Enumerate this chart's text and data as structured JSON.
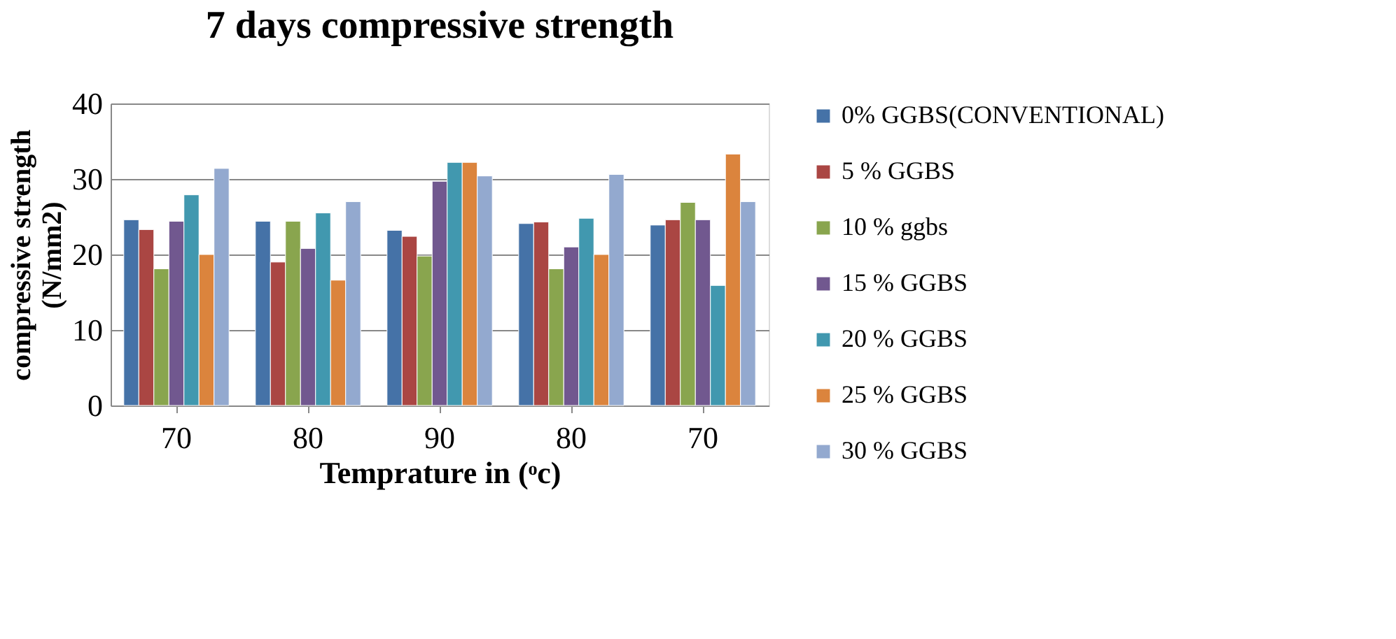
{
  "chart_data": {
    "type": "bar",
    "title": "7 days compressive strength",
    "xlabel": "Temprature in (ᵒc)",
    "ylabel": "compressive strength (N/mm2)",
    "categories": [
      "70",
      "80",
      "90",
      "80",
      "70"
    ],
    "series": [
      {
        "name": "0% GGBS(CONVENTIONAL)",
        "color": "#4572a7",
        "values": [
          24.6,
          24.4,
          23.2,
          24.1,
          23.9
        ]
      },
      {
        "name": "5 % GGBS",
        "color": "#aa4643",
        "values": [
          23.3,
          19.0,
          22.4,
          24.3,
          24.6
        ]
      },
      {
        "name": "10 % ggbs",
        "color": "#89a54e",
        "values": [
          18.1,
          24.4,
          19.8,
          18.1,
          26.9
        ]
      },
      {
        "name": "15 % GGBS",
        "color": "#71588f",
        "values": [
          24.4,
          20.8,
          29.7,
          21.0,
          24.6
        ]
      },
      {
        "name": "20 % GGBS",
        "color": "#4198af",
        "values": [
          27.9,
          25.5,
          32.2,
          24.8,
          15.9
        ]
      },
      {
        "name": "25 % GGBS",
        "color": "#db843d",
        "values": [
          20.0,
          16.6,
          32.2,
          20.0,
          33.3
        ]
      },
      {
        "name": "30 % GGBS",
        "color": "#93a9cf",
        "values": [
          31.4,
          27.0,
          30.4,
          30.6,
          27.0
        ]
      }
    ],
    "ylim": [
      0,
      40
    ],
    "yticks": [
      0,
      10,
      20,
      30,
      40
    ],
    "grid": "y",
    "legend": "right"
  }
}
